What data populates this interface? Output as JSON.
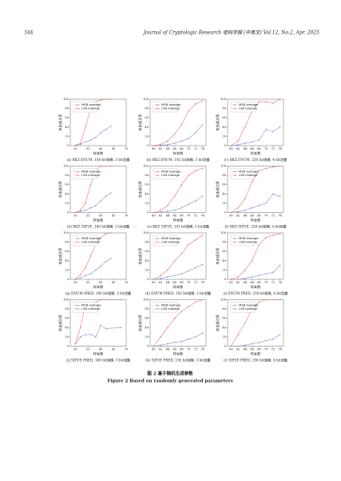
{
  "header": {
    "page_number": "344",
    "journal": "Journal of Cryptologic Research 密码学报 (中英文) Vol.12, No.2, Apr. 2025"
  },
  "figure": {
    "caption_cn": "图 2  基于随机生成参数",
    "caption_en": "Figure 2  Based on randomly generated parameters"
  },
  "chart_data": [
    {
      "type": "line",
      "caption": "(a) BKZ ENUM, 160 bit规模, 3 bit泄露",
      "xlabel": "样本数",
      "ylabel": "攻击成功率",
      "x": [
        50,
        52,
        54,
        56,
        58,
        60,
        62,
        64
      ],
      "xlim": [
        48,
        70
      ],
      "xticks": [
        50,
        55,
        60,
        65,
        70
      ],
      "ylim": [
        0,
        100
      ],
      "yticks": [
        0,
        20,
        40,
        60,
        80,
        100
      ],
      "legend": "upper left",
      "series": [
        {
          "name": "MSB leakage",
          "color": "#8a8fd0",
          "values": [
            1,
            3,
            8,
            12,
            18,
            28,
            35,
            42
          ]
        },
        {
          "name": "LSB leakage",
          "color": "#e0787a",
          "values": [
            1,
            5,
            40,
            80,
            95,
            98,
            100,
            100
          ]
        }
      ]
    },
    {
      "type": "line",
      "caption": "(b) BKZ ENUM, 192 bit规模, 3 bit泄露",
      "xlabel": "样本数",
      "ylabel": "攻击成功率",
      "x": [
        60,
        62,
        64,
        66,
        68,
        70,
        72,
        74
      ],
      "xlim": [
        59,
        75
      ],
      "xticks": [
        60,
        62,
        64,
        66,
        68,
        70,
        72,
        74
      ],
      "ylim": [
        0,
        100
      ],
      "yticks": [
        0,
        20,
        40,
        60,
        80,
        100
      ],
      "legend": "upper left",
      "series": [
        {
          "name": "MSB leakage",
          "color": "#8a8fd0",
          "values": [
            0,
            1,
            2,
            5,
            10,
            15,
            28,
            45
          ]
        },
        {
          "name": "LSB leakage",
          "color": "#e0787a",
          "values": [
            0,
            3,
            10,
            25,
            45,
            75,
            90,
            97
          ]
        }
      ]
    },
    {
      "type": "line",
      "caption": "(c) BKZ ENUM, 256 bit规模, 4 bit泄露",
      "xlabel": "样本数",
      "ylabel": "攻击成功率",
      "x": [
        60,
        62,
        64,
        66,
        68,
        70,
        72,
        74
      ],
      "xlim": [
        59,
        75
      ],
      "xticks": [
        60,
        62,
        64,
        66,
        68,
        70,
        72,
        74
      ],
      "ylim": [
        0,
        100
      ],
      "yticks": [
        0,
        20,
        40,
        60,
        80,
        100
      ],
      "legend": "upper left",
      "series": [
        {
          "name": "MSB leakage",
          "color": "#8a8fd0",
          "values": [
            0,
            2,
            5,
            8,
            12,
            35,
            30,
            40
          ]
        },
        {
          "name": "LSB leakage",
          "color": "#e0787a",
          "values": [
            0,
            10,
            40,
            75,
            95,
            95,
            92,
            100
          ]
        }
      ]
    },
    {
      "type": "line",
      "caption": "(d) BKZ SIEVE, 160 bit规模, 3 bit泄露",
      "xlabel": "样本数",
      "ylabel": "攻击成功率",
      "x": [
        50,
        52,
        54,
        56,
        58,
        60,
        62,
        64
      ],
      "xlim": [
        48,
        70
      ],
      "xticks": [
        50,
        55,
        60,
        65,
        70
      ],
      "ylim": [
        0,
        100
      ],
      "yticks": [
        0,
        20,
        40,
        60,
        80,
        100
      ],
      "legend": "upper left",
      "series": [
        {
          "name": "MSB leakage",
          "color": "#8a8fd0",
          "values": [
            0,
            2,
            5,
            10,
            15,
            25,
            35,
            42
          ]
        },
        {
          "name": "LSB leakage",
          "color": "#e0787a",
          "values": [
            0,
            5,
            20,
            60,
            90,
            100,
            100,
            100
          ]
        }
      ]
    },
    {
      "type": "line",
      "caption": "(e) BKZ SIEVE, 192 bit规模, 3 bit泄露",
      "xlabel": "样本数",
      "ylabel": "攻击成功率",
      "x": [
        60,
        62,
        64,
        66,
        68,
        70,
        72,
        74
      ],
      "xlim": [
        59,
        75
      ],
      "xticks": [
        60,
        62,
        64,
        66,
        68,
        70,
        72,
        74
      ],
      "ylim": [
        0,
        100
      ],
      "yticks": [
        0,
        20,
        40,
        60,
        80,
        100
      ],
      "legend": "upper left",
      "series": [
        {
          "name": "MSB leakage",
          "color": "#8a8fd0",
          "values": [
            0,
            1,
            3,
            5,
            10,
            18,
            25,
            35
          ]
        },
        {
          "name": "LSB leakage",
          "color": "#e0787a",
          "values": [
            0,
            5,
            15,
            35,
            60,
            80,
            90,
            95
          ]
        }
      ]
    },
    {
      "type": "line",
      "caption": "(f) BKZ SIEVE, 256 bit规模, 4 bit泄露",
      "xlabel": "样本数",
      "ylabel": "攻击成功率",
      "x": [
        60,
        62,
        64,
        66,
        68,
        70,
        72,
        74
      ],
      "xlim": [
        59,
        75
      ],
      "xticks": [
        60,
        62,
        64,
        66,
        68,
        70,
        72,
        74
      ],
      "ylim": [
        0,
        100
      ],
      "yticks": [
        0,
        20,
        40,
        60,
        80,
        100
      ],
      "legend": "upper left",
      "series": [
        {
          "name": "MSB leakage",
          "color": "#8a8fd0",
          "values": [
            0,
            2,
            5,
            10,
            15,
            20,
            40,
            35
          ]
        },
        {
          "name": "LSB leakage",
          "color": "#e0787a",
          "values": [
            0,
            10,
            30,
            65,
            90,
            95,
            98,
            100
          ]
        }
      ]
    },
    {
      "type": "line",
      "caption": "(g) ENUM PRED, 160 bit规模, 3 bit泄露",
      "xlabel": "样本数",
      "ylabel": "攻击成功率",
      "x": [
        50,
        52,
        54,
        56,
        58,
        60,
        62,
        64
      ],
      "xlim": [
        48,
        70
      ],
      "xticks": [
        50,
        55,
        60,
        65,
        70
      ],
      "ylim": [
        0,
        100
      ],
      "yticks": [
        0,
        20,
        40,
        60,
        80,
        100
      ],
      "legend": "upper left",
      "series": [
        {
          "name": "MSB leakage",
          "color": "#8a8fd0",
          "values": [
            0,
            3,
            8,
            12,
            20,
            28,
            38,
            45
          ]
        },
        {
          "name": "LSB leakage",
          "color": "#e0787a",
          "values": [
            0,
            10,
            25,
            50,
            75,
            90,
            98,
            100
          ]
        }
      ]
    },
    {
      "type": "line",
      "caption": "(h) ENUM PRED, 192 bit规模, 3 bit泄露",
      "xlabel": "样本数",
      "ylabel": "攻击成功率",
      "x": [
        60,
        62,
        64,
        66,
        68,
        70,
        72,
        74
      ],
      "xlim": [
        59,
        75
      ],
      "xticks": [
        60,
        62,
        64,
        66,
        68,
        70,
        72,
        74
      ],
      "ylim": [
        0,
        100
      ],
      "yticks": [
        0,
        20,
        40,
        60,
        80,
        100
      ],
      "legend": "upper left",
      "series": [
        {
          "name": "MSB leakage",
          "color": "#8a8fd0",
          "values": [
            0,
            2,
            5,
            8,
            12,
            18,
            25,
            32
          ]
        },
        {
          "name": "LSB leakage",
          "color": "#e0787a",
          "values": [
            0,
            8,
            20,
            40,
            55,
            75,
            85,
            95
          ]
        }
      ]
    },
    {
      "type": "line",
      "caption": "(i) ENUM PRED, 256 bit规模, 4 bit泄露",
      "xlabel": "样本数",
      "ylabel": "攻击成功率",
      "x": [
        60,
        62,
        64,
        66,
        68,
        70,
        72,
        74
      ],
      "xlim": [
        59,
        75
      ],
      "xticks": [
        60,
        62,
        64,
        66,
        68,
        70,
        72,
        74
      ],
      "ylim": [
        0,
        100
      ],
      "yticks": [
        0,
        20,
        40,
        60,
        80,
        100
      ],
      "legend": "upper left",
      "series": [
        {
          "name": "MSB leakage",
          "color": "#8a8fd0",
          "values": [
            0,
            0,
            2,
            5,
            8,
            12,
            15,
            30
          ]
        },
        {
          "name": "LSB leakage",
          "color": "#e0787a",
          "values": [
            0,
            5,
            20,
            40,
            75,
            90,
            95,
            98
          ]
        }
      ]
    },
    {
      "type": "line",
      "caption": "(j) SIEVE PRED, 160 bit规模, 3 bit泄露",
      "xlabel": "样本数",
      "ylabel": "攻击成功率",
      "x": [
        50,
        52,
        54,
        56,
        58,
        60,
        62,
        68
      ],
      "xlim": [
        48,
        70
      ],
      "xticks": [
        50,
        55,
        60,
        65,
        70
      ],
      "ylim": [
        0,
        100
      ],
      "yticks": [
        0,
        20,
        40,
        60,
        80,
        100
      ],
      "legend": "upper left",
      "series": [
        {
          "name": "MSB leakage",
          "color": "#8a8fd0",
          "values": [
            5,
            20,
            25,
            25,
            20,
            45,
            38,
            40
          ]
        },
        {
          "name": "LSB leakage",
          "color": "#e0787a",
          "values": [
            5,
            40,
            90,
            85,
            95,
            100,
            100,
            100
          ]
        }
      ]
    },
    {
      "type": "line",
      "caption": "(k) SIEVE PRED, 192 bit规模, 3 bit泄露",
      "xlabel": "样本数",
      "ylabel": "攻击成功率",
      "x": [
        60,
        62,
        64,
        66,
        68,
        70,
        72,
        74
      ],
      "xlim": [
        59,
        75
      ],
      "xticks": [
        60,
        62,
        64,
        66,
        68,
        70,
        72,
        74
      ],
      "ylim": [
        0,
        100
      ],
      "yticks": [
        0,
        20,
        40,
        60,
        80,
        100
      ],
      "legend": "upper left",
      "series": [
        {
          "name": "MSB leakage",
          "color": "#8a8fd0",
          "values": [
            0,
            2,
            5,
            8,
            10,
            15,
            20,
            28
          ]
        },
        {
          "name": "LSB leakage",
          "color": "#e0787a",
          "values": [
            0,
            20,
            40,
            60,
            75,
            85,
            95,
            100
          ]
        }
      ]
    },
    {
      "type": "line",
      "caption": "(l) SIEVE PRED, 256 bit规模, 4 bit泄露",
      "xlabel": "样本数",
      "ylabel": "攻击成功率",
      "x": [
        60,
        62,
        64,
        66,
        68,
        70,
        72,
        74
      ],
      "xlim": [
        59,
        75
      ],
      "xticks": [
        60,
        62,
        64,
        66,
        68,
        70,
        72,
        74
      ],
      "ylim": [
        0,
        100
      ],
      "yticks": [
        0,
        20,
        40,
        60,
        80,
        100
      ],
      "legend": "upper left",
      "series": [
        {
          "name": "MSB leakage",
          "color": "#8a8fd0",
          "values": [
            0,
            0,
            2,
            5,
            8,
            12,
            15,
            25
          ]
        },
        {
          "name": "LSB leakage",
          "color": "#e0787a",
          "values": [
            0,
            25,
            50,
            80,
            95,
            100,
            100,
            100
          ]
        }
      ]
    }
  ]
}
